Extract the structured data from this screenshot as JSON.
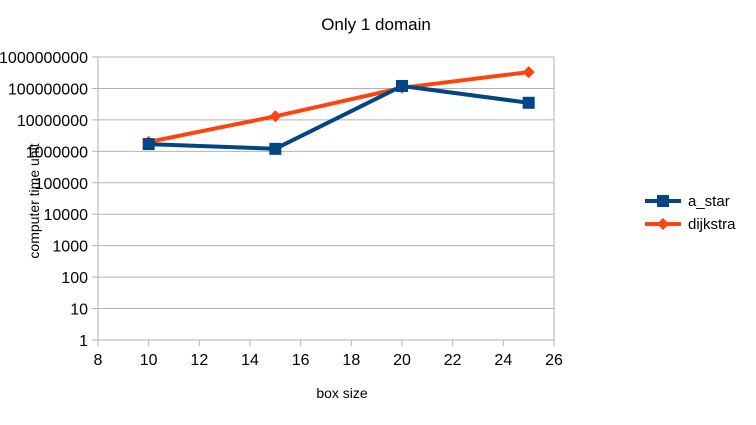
{
  "chart_data": {
    "type": "line",
    "title": "Only 1 domain",
    "xlabel": "box size",
    "ylabel": "computer time unit",
    "x_scale": "linear",
    "y_scale": "log",
    "xlim": [
      8,
      26
    ],
    "ylim": [
      1,
      1000000000
    ],
    "x_ticks": [
      8,
      10,
      12,
      14,
      16,
      18,
      20,
      22,
      24,
      26
    ],
    "y_ticks": [
      "1",
      "10",
      "100",
      "1000",
      "10000",
      "100000",
      "1000000",
      "10000000",
      "100000000",
      "1000000000"
    ],
    "grid": "horizontal",
    "legend_position": "right",
    "series": [
      {
        "name": "a_star",
        "marker": "square",
        "color": "#004586",
        "x": [
          10,
          15,
          20,
          25
        ],
        "y": [
          1700000,
          1200000,
          120000000,
          35000000
        ]
      },
      {
        "name": "dijkstra",
        "marker": "diamond",
        "color": "#ff420e",
        "x": [
          10,
          15,
          20,
          25
        ],
        "y": [
          2000000,
          13000000,
          105000000,
          330000000
        ]
      }
    ]
  }
}
